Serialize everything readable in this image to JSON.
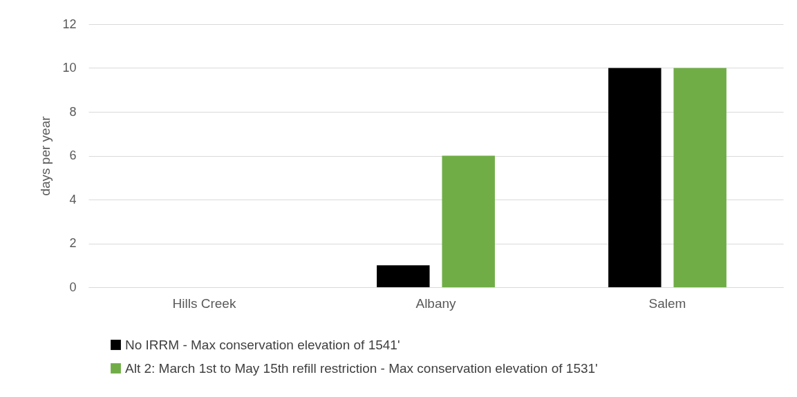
{
  "chart_data": {
    "type": "bar",
    "ylabel": "days per year",
    "categories": [
      "Hills Creek",
      "Albany",
      "Salem"
    ],
    "series": [
      {
        "name": "No IRRM - Max conservation elevation of 1541'",
        "color": "#000000",
        "values": [
          0,
          1,
          10
        ]
      },
      {
        "name": "Alt 2: March 1st to May 15th refill restriction - Max conservation elevation of 1531'",
        "color": "#70ad47",
        "values": [
          0,
          6,
          10
        ]
      }
    ],
    "ylim": [
      0,
      12
    ],
    "yticks": [
      0,
      2,
      4,
      6,
      8,
      10,
      12
    ],
    "grid": "y",
    "legend": "bottom"
  }
}
